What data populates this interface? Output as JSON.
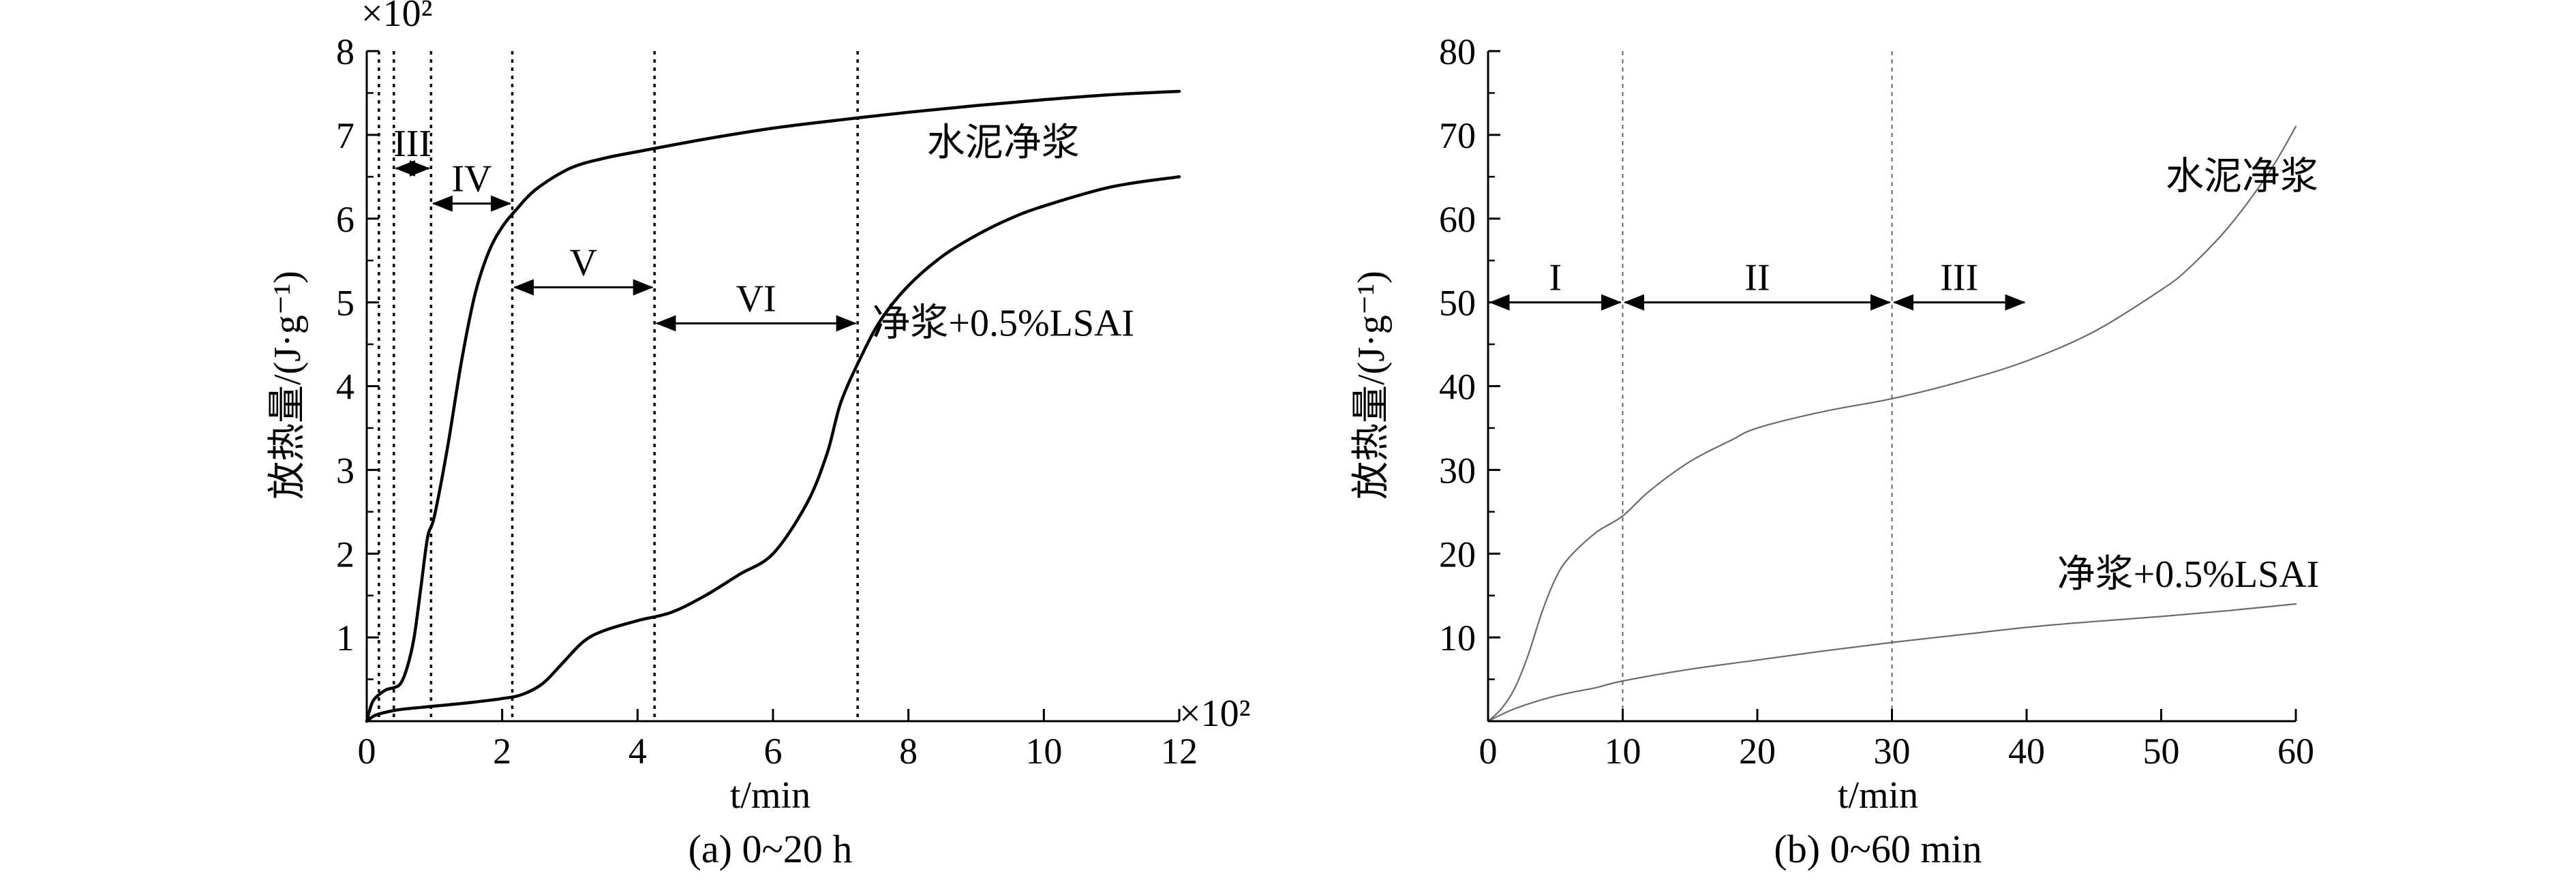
{
  "chart_data": [
    {
      "type": "line",
      "caption": "(a) 0~20 h",
      "xlabel": "t/min",
      "ylabel": "放热量/(J·g⁻¹)",
      "x_multiplier": "×10²",
      "y_multiplier": "×10²",
      "xlim": [
        0,
        12
      ],
      "ylim": [
        0,
        8
      ],
      "xticks": [
        "0",
        "2",
        "4",
        "6",
        "8",
        "10",
        "12"
      ],
      "yticks": [
        "1",
        "2",
        "3",
        "4",
        "5",
        "6",
        "7",
        "8"
      ],
      "series": [
        {
          "name": "水泥净浆",
          "x": [
            0,
            0.05,
            0.1,
            0.2,
            0.3,
            0.4,
            0.5,
            0.6,
            0.7,
            0.8,
            0.9,
            1.0,
            1.2,
            1.4,
            1.6,
            1.8,
            2.0,
            2.2,
            2.5,
            3.0,
            3.5,
            4.0,
            5.0,
            6.0,
            7.0,
            8.0,
            9.0,
            10.0,
            11.0,
            12.0
          ],
          "y": [
            0,
            0.15,
            0.25,
            0.33,
            0.38,
            0.4,
            0.45,
            0.65,
            1.0,
            1.6,
            2.2,
            2.45,
            3.3,
            4.3,
            5.1,
            5.6,
            5.9,
            6.1,
            6.35,
            6.6,
            6.72,
            6.8,
            6.95,
            7.08,
            7.18,
            7.27,
            7.35,
            7.42,
            7.48,
            7.52
          ]
        },
        {
          "name": "净浆+0.5%LSAI",
          "x": [
            0,
            0.1,
            0.2,
            0.3,
            0.5,
            1.0,
            1.5,
            2.0,
            2.3,
            2.6,
            2.9,
            3.2,
            3.5,
            4.0,
            4.5,
            5.0,
            5.5,
            6.0,
            6.5,
            6.8,
            7.0,
            7.3,
            7.6,
            8.0,
            8.5,
            9.0,
            9.5,
            10.0,
            11.0,
            12.0
          ],
          "y": [
            0,
            0.06,
            0.09,
            0.11,
            0.14,
            0.18,
            0.22,
            0.27,
            0.32,
            0.45,
            0.7,
            0.95,
            1.08,
            1.2,
            1.3,
            1.5,
            1.75,
            2.0,
            2.6,
            3.2,
            3.8,
            4.35,
            4.8,
            5.2,
            5.55,
            5.8,
            6.0,
            6.15,
            6.38,
            6.5
          ]
        }
      ],
      "vlines": [
        0.18,
        0.4,
        0.95,
        2.15,
        4.25,
        7.25
      ],
      "regions": [
        {
          "label": "III",
          "from": 0.4,
          "to": 0.95,
          "y": 6.6
        },
        {
          "label": "IV",
          "from": 0.95,
          "to": 2.15,
          "y": 6.18
        },
        {
          "label": "V",
          "from": 2.15,
          "to": 4.25,
          "y": 5.18
        },
        {
          "label": "VI",
          "from": 4.25,
          "to": 7.25,
          "y": 4.75
        }
      ],
      "annotations": [
        {
          "text": "水泥净浆",
          "x": 9.4,
          "y": 6.9
        },
        {
          "text": "净浆+0.5%LSAI",
          "x": 9.4,
          "y": 4.75
        }
      ]
    },
    {
      "type": "line",
      "caption": "(b) 0~60 min",
      "xlabel": "t/min",
      "ylabel": "放热量/(J·g⁻¹)",
      "xlim": [
        0,
        60
      ],
      "ylim": [
        0,
        80
      ],
      "xticks": [
        "0",
        "10",
        "20",
        "30",
        "40",
        "50",
        "60"
      ],
      "yticks": [
        "10",
        "20",
        "30",
        "40",
        "50",
        "60",
        "70",
        "80"
      ],
      "series": [
        {
          "name": "水泥净浆",
          "x": [
            0,
            1,
            2,
            3,
            4,
            5,
            6,
            8,
            10,
            12,
            15,
            18,
            20,
            25,
            30,
            35,
            40,
            45,
            50,
            52,
            55,
            58,
            60
          ],
          "y": [
            0,
            1.5,
            4,
            8,
            13,
            17,
            19.5,
            22.5,
            24.5,
            27.5,
            31,
            33.5,
            35,
            37,
            38.5,
            40.5,
            43,
            46.5,
            51.5,
            54,
            59,
            65.5,
            71
          ]
        },
        {
          "name": "净浆+0.5%LSAI",
          "x": [
            0,
            2,
            5,
            8,
            10,
            15,
            20,
            25,
            30,
            35,
            40,
            45,
            50,
            55,
            60
          ],
          "y": [
            0,
            1.5,
            3,
            4,
            4.8,
            6.2,
            7.3,
            8.4,
            9.4,
            10.3,
            11.2,
            11.9,
            12.5,
            13.2,
            14
          ]
        }
      ],
      "vlines": [
        10,
        30
      ],
      "regions": [
        {
          "label": "I",
          "from": 0,
          "to": 10,
          "y": 50
        },
        {
          "label": "II",
          "from": 10,
          "to": 30,
          "y": 50
        },
        {
          "label": "III",
          "from": 30,
          "to": 40,
          "y": 50
        }
      ],
      "annotations": [
        {
          "text": "水泥净浆",
          "x": 56,
          "y": 65
        },
        {
          "text": "净浆+0.5%LSAI",
          "x": 52,
          "y": 17.5
        }
      ]
    }
  ]
}
